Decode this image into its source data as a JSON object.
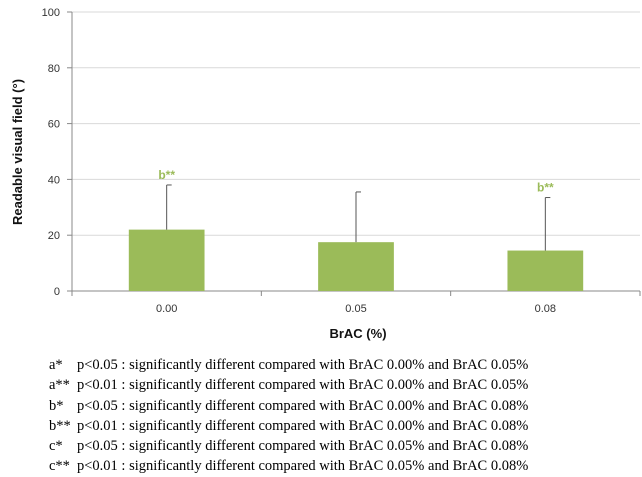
{
  "chart_data": {
    "type": "bar",
    "categories": [
      "0.00",
      "0.05",
      "0.08"
    ],
    "values": [
      22,
      17.5,
      14.5
    ],
    "error_upper": [
      38,
      35.5,
      33.5
    ],
    "significance": [
      "b**",
      "",
      "b**"
    ],
    "xlabel": "BrAC (%)",
    "ylabel": "Readable visual field (°)",
    "ylim": [
      0,
      100
    ],
    "yticks": [
      "0",
      "20",
      "40",
      "60",
      "80",
      "100"
    ],
    "grid": "horizontal",
    "bar_color": "#9bbb59"
  },
  "footnotes": [
    {
      "code": "a*",
      "text": "p<0.05 : significantly different compared with BrAC 0.00% and BrAC 0.05%"
    },
    {
      "code": "a**",
      "text": "p<0.01 : significantly different compared with BrAC 0.00% and BrAC 0.05%"
    },
    {
      "code": "b*",
      "text": "p<0.05 : significantly different compared with BrAC 0.00% and BrAC 0.08%"
    },
    {
      "code": "b**",
      "text": "p<0.01 : significantly different compared with BrAC 0.00% and BrAC 0.08%"
    },
    {
      "code": "c*",
      "text": "p<0.05 : significantly different compared with BrAC 0.05% and BrAC 0.08%"
    },
    {
      "code": "c**",
      "text": "p<0.01 : significantly different compared with BrAC 0.05% and BrAC 0.08%"
    }
  ]
}
